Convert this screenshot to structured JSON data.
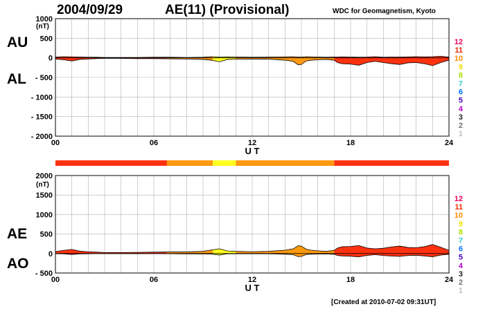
{
  "header": {
    "date": "2004/09/29",
    "title": "AE(11) (Provisional)",
    "source": "WDC for Geomagnetism, Kyoto"
  },
  "footer": {
    "created": "[Created at 2010-07-02 09:31UT]"
  },
  "station_scale": {
    "labels": [
      "12",
      "11",
      "10",
      "9",
      "8",
      "7",
      "6",
      "5",
      "4",
      "3",
      "2",
      "1"
    ],
    "colors": [
      "#e8005a",
      "#e82800",
      "#ff8c00",
      "#f0e000",
      "#a8e000",
      "#30d0d0",
      "#0070ff",
      "#4000c0",
      "#b000c0",
      "#222222",
      "#707070",
      "#c0c0c0"
    ]
  },
  "colors": {
    "stations_12": "#ff3210",
    "stations_10": "#ff9a10",
    "stations_9": "#ffff20",
    "outline": "#000000",
    "grid": "#b0b0b0"
  },
  "chart_data": [
    {
      "type": "area",
      "panel": "AU / AL",
      "series_labels": [
        "AU",
        "AL"
      ],
      "y_unit": "(nT)",
      "ylim": [
        -2000,
        1000
      ],
      "y_ticks": [
        1000,
        500,
        0,
        -500,
        -1000,
        -1500,
        -2000
      ],
      "y_tick_labels": [
        "1000",
        "500",
        "0",
        "- 500",
        "- 1000",
        "- 1500",
        "- 2000"
      ],
      "xlim": [
        0,
        24
      ],
      "x_ticks": [
        0,
        6,
        12,
        18,
        24
      ],
      "x_tick_labels": [
        "00",
        "06",
        "12",
        "18",
        "24"
      ],
      "xlabel": "U T",
      "grid": true,
      "x": [
        0,
        0.5,
        1,
        1.5,
        2,
        2.5,
        3,
        4,
        5,
        6,
        7,
        8,
        9,
        9.5,
        10,
        10.5,
        11,
        12,
        13,
        14,
        14.5,
        14.8,
        15,
        15.3,
        15.6,
        16,
        16.5,
        17,
        17.2,
        17.5,
        18,
        18.5,
        19,
        19.5,
        20,
        20.5,
        21,
        21.5,
        22,
        22.5,
        23,
        23.5,
        24
      ],
      "AU": [
        20,
        30,
        25,
        20,
        15,
        15,
        10,
        10,
        10,
        15,
        15,
        10,
        15,
        30,
        20,
        25,
        20,
        15,
        20,
        25,
        30,
        20,
        20,
        30,
        25,
        20,
        15,
        20,
        20,
        25,
        20,
        15,
        20,
        30,
        15,
        20,
        20,
        25,
        30,
        25,
        30,
        40,
        20
      ],
      "AL": [
        -30,
        -50,
        -80,
        -40,
        -30,
        -20,
        -15,
        -15,
        -20,
        -20,
        -25,
        -30,
        -40,
        -60,
        -100,
        -40,
        -35,
        -30,
        -35,
        -60,
        -90,
        -180,
        -170,
        -80,
        -60,
        -50,
        -40,
        -60,
        -120,
        -150,
        -160,
        -190,
        -120,
        -90,
        -120,
        -150,
        -170,
        -130,
        -120,
        -150,
        -200,
        -120,
        -60
      ]
    },
    {
      "type": "area",
      "panel": "AE / AO",
      "series_labels": [
        "AE",
        "AO"
      ],
      "y_unit": "(nT)",
      "ylim": [
        -500,
        2000
      ],
      "y_ticks": [
        2000,
        1500,
        1000,
        500,
        0,
        -500
      ],
      "y_tick_labels": [
        "2000",
        "1500",
        "1000",
        "500",
        "0",
        "- 500"
      ],
      "xlim": [
        0,
        24
      ],
      "x_ticks": [
        0,
        6,
        12,
        18,
        24
      ],
      "x_tick_labels": [
        "00",
        "06",
        "12",
        "18",
        "24"
      ],
      "xlabel": "U T",
      "grid": true,
      "x": [
        0,
        0.5,
        1,
        1.5,
        2,
        2.5,
        3,
        4,
        5,
        6,
        7,
        8,
        9,
        9.5,
        10,
        10.5,
        11,
        12,
        13,
        14,
        14.5,
        14.8,
        15,
        15.3,
        15.6,
        16,
        16.5,
        17,
        17.2,
        17.5,
        18,
        18.5,
        19,
        19.5,
        20,
        20.5,
        21,
        21.5,
        22,
        22.5,
        23,
        23.5,
        24
      ],
      "AE": [
        50,
        80,
        105,
        60,
        45,
        35,
        25,
        25,
        30,
        35,
        40,
        40,
        55,
        90,
        120,
        65,
        55,
        45,
        55,
        85,
        120,
        200,
        190,
        110,
        85,
        70,
        55,
        80,
        140,
        175,
        180,
        205,
        140,
        120,
        135,
        170,
        190,
        155,
        150,
        175,
        230,
        160,
        80
      ],
      "AO": [
        -5,
        -10,
        -25,
        -10,
        -8,
        -3,
        -3,
        -3,
        -5,
        -3,
        -5,
        -10,
        -12,
        -15,
        -40,
        -8,
        -8,
        -8,
        -8,
        -18,
        -30,
        -80,
        -75,
        -25,
        -18,
        -15,
        -12,
        -20,
        -50,
        -62,
        -70,
        -88,
        -50,
        -30,
        -52,
        -65,
        -75,
        -52,
        -45,
        -62,
        -85,
        -40,
        -20
      ]
    }
  ],
  "station_count_bar": {
    "legend_ref": "station count",
    "segments": [
      {
        "from": 0,
        "to": 6.8,
        "count": 12
      },
      {
        "from": 6.8,
        "to": 9.6,
        "count": 10
      },
      {
        "from": 9.6,
        "to": 11,
        "count": 9
      },
      {
        "from": 11,
        "to": 17,
        "count": 10
      },
      {
        "from": 17,
        "to": 24,
        "count": 12
      }
    ]
  }
}
